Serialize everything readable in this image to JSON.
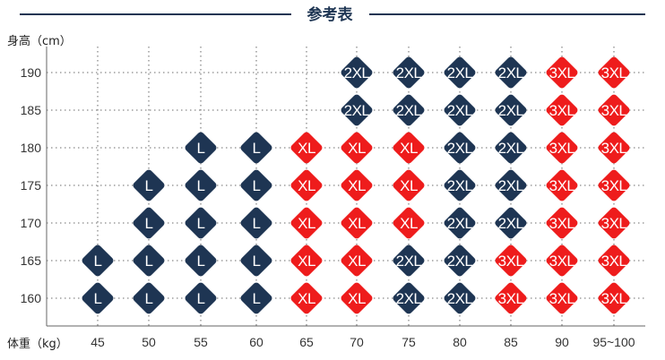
{
  "chart_data": {
    "type": "table",
    "title": "参考表",
    "ylabel": "身高（cm）",
    "xlabel": "体重（kg）",
    "x_ticks": [
      "45",
      "50",
      "55",
      "60",
      "65",
      "70",
      "75",
      "80",
      "85",
      "90",
      "95~100"
    ],
    "y_ticks": [
      160,
      165,
      170,
      175,
      180,
      185,
      190
    ],
    "colors": {
      "L": "#1e3553",
      "2XL": "#1e3553",
      "XL": "#ee1c1c",
      "3XL": "#ee1c1c"
    },
    "cells": [
      {
        "w": "45",
        "h": 165,
        "size": "L"
      },
      {
        "w": "45",
        "h": 160,
        "size": "L"
      },
      {
        "w": "50",
        "h": 175,
        "size": "L"
      },
      {
        "w": "50",
        "h": 170,
        "size": "L"
      },
      {
        "w": "50",
        "h": 165,
        "size": "L"
      },
      {
        "w": "50",
        "h": 160,
        "size": "L"
      },
      {
        "w": "55",
        "h": 180,
        "size": "L"
      },
      {
        "w": "55",
        "h": 175,
        "size": "L"
      },
      {
        "w": "55",
        "h": 170,
        "size": "L"
      },
      {
        "w": "55",
        "h": 165,
        "size": "L"
      },
      {
        "w": "55",
        "h": 160,
        "size": "L"
      },
      {
        "w": "60",
        "h": 180,
        "size": "L"
      },
      {
        "w": "60",
        "h": 175,
        "size": "L"
      },
      {
        "w": "60",
        "h": 170,
        "size": "L"
      },
      {
        "w": "60",
        "h": 165,
        "size": "L"
      },
      {
        "w": "60",
        "h": 160,
        "size": "L"
      },
      {
        "w": "65",
        "h": 180,
        "size": "XL"
      },
      {
        "w": "65",
        "h": 175,
        "size": "XL"
      },
      {
        "w": "65",
        "h": 170,
        "size": "XL"
      },
      {
        "w": "65",
        "h": 165,
        "size": "XL"
      },
      {
        "w": "65",
        "h": 160,
        "size": "XL"
      },
      {
        "w": "70",
        "h": 190,
        "size": "2XL"
      },
      {
        "w": "70",
        "h": 185,
        "size": "2XL"
      },
      {
        "w": "70",
        "h": 180,
        "size": "XL"
      },
      {
        "w": "70",
        "h": 175,
        "size": "XL"
      },
      {
        "w": "70",
        "h": 170,
        "size": "XL"
      },
      {
        "w": "70",
        "h": 165,
        "size": "XL"
      },
      {
        "w": "70",
        "h": 160,
        "size": "XL"
      },
      {
        "w": "75",
        "h": 190,
        "size": "2XL"
      },
      {
        "w": "75",
        "h": 185,
        "size": "2XL"
      },
      {
        "w": "75",
        "h": 180,
        "size": "XL"
      },
      {
        "w": "75",
        "h": 175,
        "size": "XL"
      },
      {
        "w": "75",
        "h": 170,
        "size": "XL"
      },
      {
        "w": "75",
        "h": 165,
        "size": "2XL"
      },
      {
        "w": "75",
        "h": 160,
        "size": "2XL"
      },
      {
        "w": "80",
        "h": 190,
        "size": "2XL"
      },
      {
        "w": "80",
        "h": 185,
        "size": "2XL"
      },
      {
        "w": "80",
        "h": 180,
        "size": "2XL"
      },
      {
        "w": "80",
        "h": 175,
        "size": "2XL"
      },
      {
        "w": "80",
        "h": 170,
        "size": "2XL"
      },
      {
        "w": "80",
        "h": 165,
        "size": "2XL"
      },
      {
        "w": "80",
        "h": 160,
        "size": "2XL"
      },
      {
        "w": "85",
        "h": 190,
        "size": "2XL"
      },
      {
        "w": "85",
        "h": 185,
        "size": "2XL"
      },
      {
        "w": "85",
        "h": 180,
        "size": "2XL"
      },
      {
        "w": "85",
        "h": 175,
        "size": "2XL"
      },
      {
        "w": "85",
        "h": 170,
        "size": "2XL"
      },
      {
        "w": "85",
        "h": 165,
        "size": "3XL"
      },
      {
        "w": "85",
        "h": 160,
        "size": "3XL"
      },
      {
        "w": "90",
        "h": 190,
        "size": "3XL"
      },
      {
        "w": "90",
        "h": 185,
        "size": "3XL"
      },
      {
        "w": "90",
        "h": 180,
        "size": "3XL"
      },
      {
        "w": "90",
        "h": 175,
        "size": "3XL"
      },
      {
        "w": "90",
        "h": 170,
        "size": "3XL"
      },
      {
        "w": "90",
        "h": 165,
        "size": "3XL"
      },
      {
        "w": "90",
        "h": 160,
        "size": "3XL"
      },
      {
        "w": "95~100",
        "h": 190,
        "size": "3XL"
      },
      {
        "w": "95~100",
        "h": 185,
        "size": "3XL"
      },
      {
        "w": "95~100",
        "h": 180,
        "size": "3XL"
      },
      {
        "w": "95~100",
        "h": 175,
        "size": "3XL"
      },
      {
        "w": "95~100",
        "h": 170,
        "size": "3XL"
      },
      {
        "w": "95~100",
        "h": 165,
        "size": "3XL"
      },
      {
        "w": "95~100",
        "h": 160,
        "size": "3XL"
      }
    ]
  }
}
